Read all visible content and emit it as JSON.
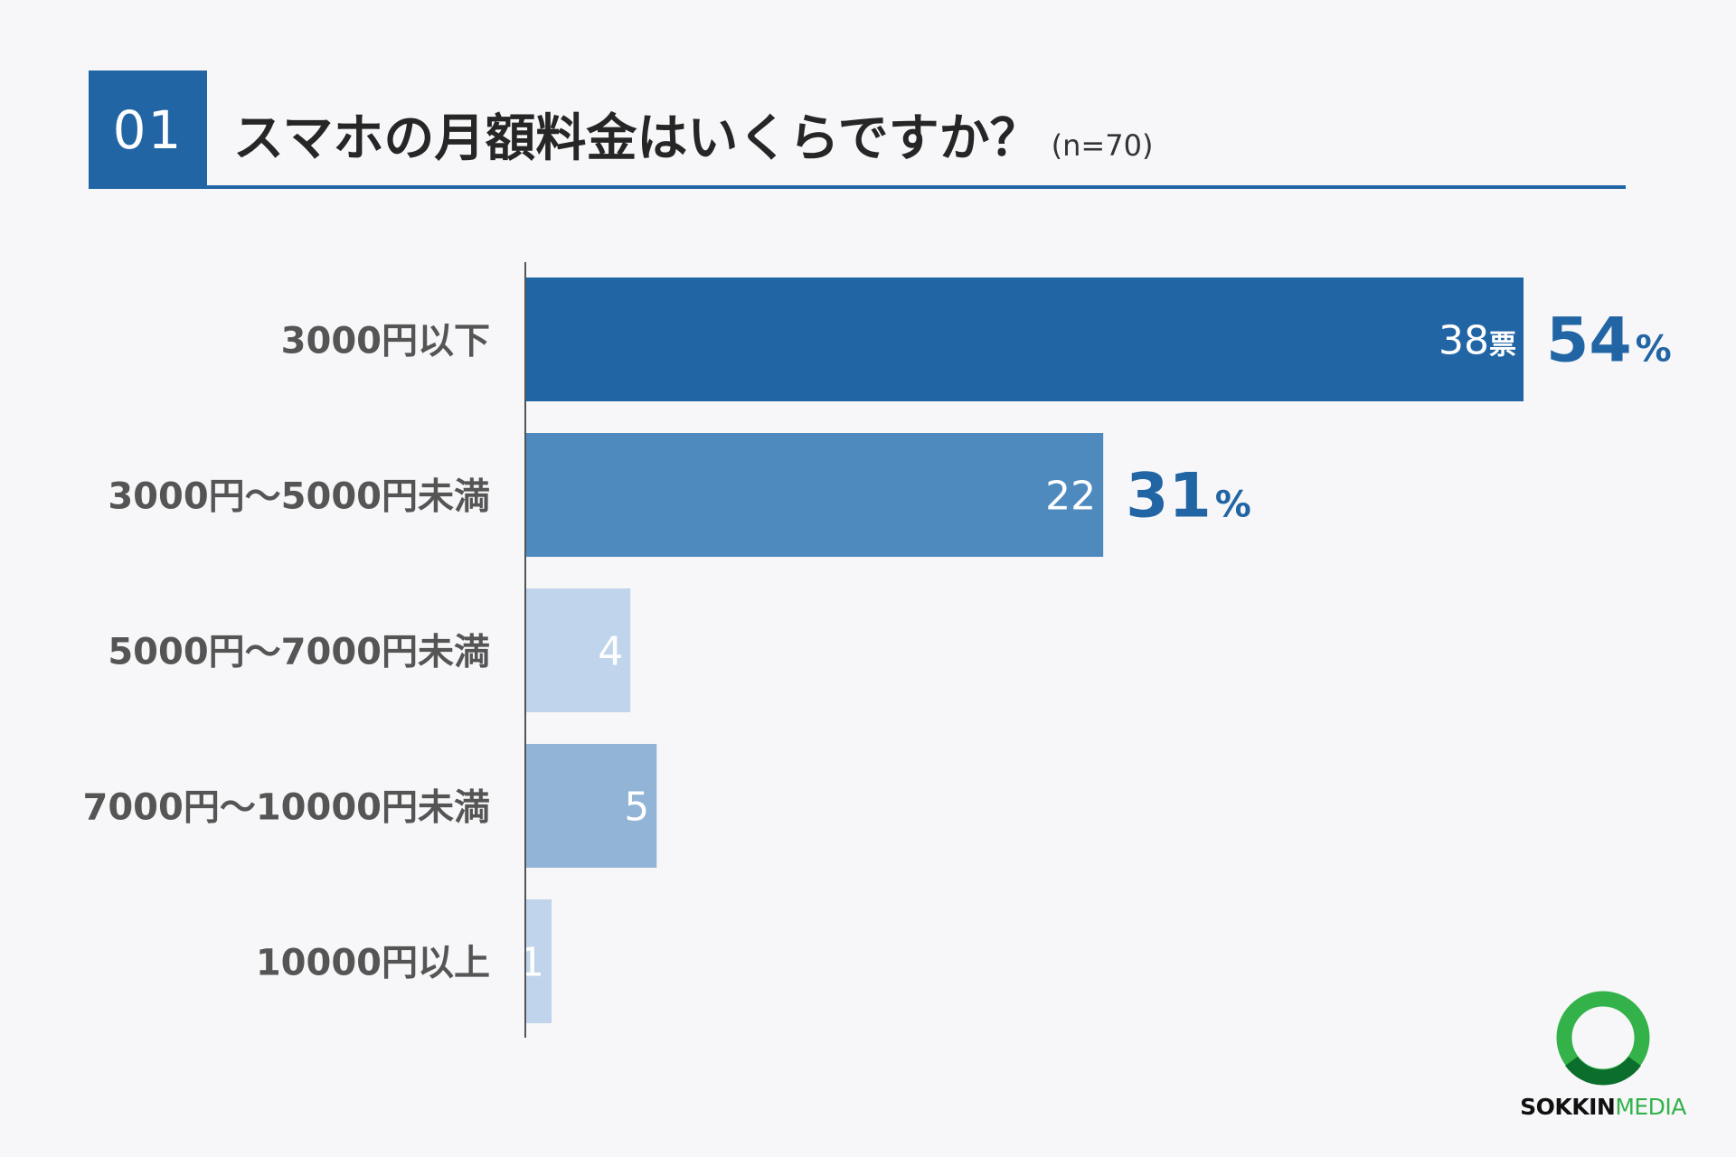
{
  "header": {
    "number": "01",
    "title": "スマホの月額料金はいくらですか？",
    "sample": "(n=70)"
  },
  "chart_data": {
    "type": "bar",
    "orientation": "horizontal",
    "categories": [
      "3000円以下",
      "3000円〜5000円未満",
      "5000円〜7000円未満",
      "7000円〜10000円未満",
      "10000円以上"
    ],
    "values": [
      38,
      22,
      4,
      5,
      1
    ],
    "value_labels": [
      "38",
      "22",
      "4",
      "5",
      "1"
    ],
    "value_unit": "票",
    "percent_labels": [
      {
        "index": 0,
        "value": "54",
        "unit": "%"
      },
      {
        "index": 1,
        "value": "31",
        "unit": "%"
      }
    ],
    "bar_colors": [
      "#2265a5",
      "#4f8abf",
      "#c0d4eb",
      "#92b4d6",
      "#c0d4eb"
    ],
    "percent_color": "#2265a5",
    "xlim": [
      0,
      38
    ],
    "grid": false,
    "legend": "none"
  },
  "logo": {
    "text_bold": "SOKKIN",
    "text_light": "MEDIA",
    "ring_color": "#33b24a"
  }
}
